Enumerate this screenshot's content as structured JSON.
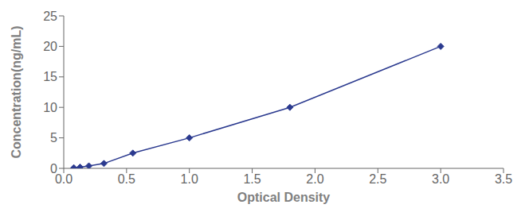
{
  "chart_data": {
    "type": "line",
    "x": [
      0.08,
      0.13,
      0.2,
      0.32,
      0.55,
      1.0,
      1.8,
      3.0
    ],
    "values": [
      0.1,
      0.2,
      0.4,
      0.8,
      2.5,
      5.0,
      10.0,
      20.0
    ],
    "color": "#2B3A8F",
    "marker": "diamond",
    "line_style": "solid",
    "xlabel": "Optical Density",
    "ylabel": "Concentration(ng/mL)",
    "xlim": [
      0,
      3.5
    ],
    "ylim": [
      0,
      25
    ],
    "xticks": [
      {
        "value": 0,
        "label": "0.0"
      },
      0.5,
      {
        "value": 1.0,
        "label": "1.0"
      },
      1.5,
      {
        "value": 2.0,
        "label": "2.0"
      },
      2.5,
      {
        "value": 3.0,
        "label": "3.0"
      },
      3.5
    ],
    "yticks": [
      0,
      5,
      10,
      15,
      20,
      25
    ],
    "grid": false
  }
}
